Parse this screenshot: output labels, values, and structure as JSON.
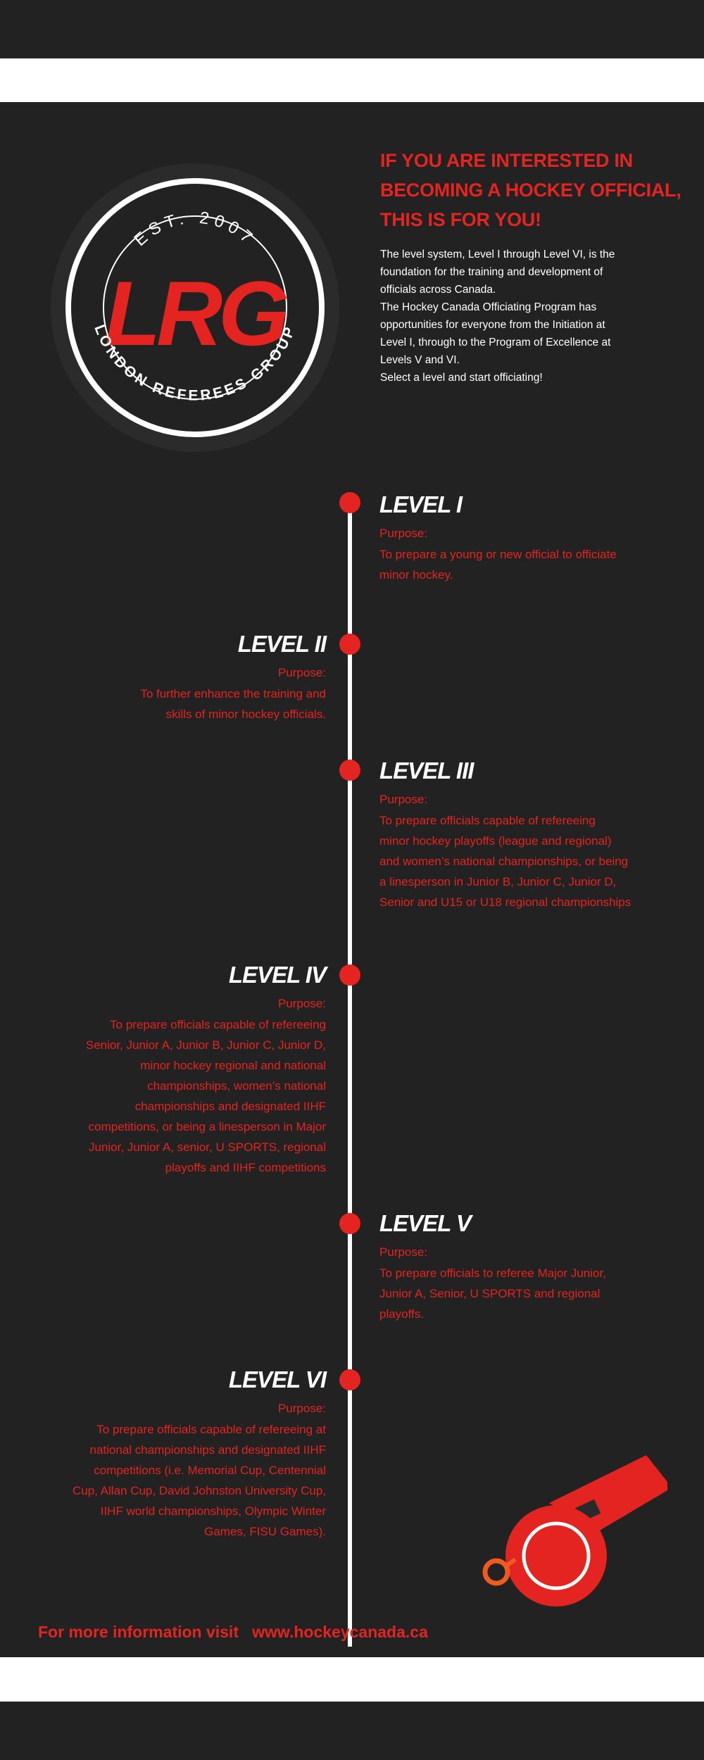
{
  "logo": {
    "est": "EST. 2007",
    "letters": "LRG",
    "ring_text": "LONDON REFEREES GROUP"
  },
  "intro": {
    "heading_lines": [
      "IF YOU ARE INTERESTED IN",
      "BECOMING A HOCKEY OFFICIAL,",
      "THIS IS FOR YOU!"
    ],
    "paragraph_lines": [
      "The level system, Level I through Level VI, is the",
      "foundation for the training and development of",
      "officials across Canada.",
      "The Hockey Canada Officiating Program has",
      "opportunities for everyone from the Initiation at",
      "Level I, through to the Program of Excellence at",
      "Levels V and VI.",
      "Select a level and start officiating!"
    ]
  },
  "levels": [
    {
      "title": "LEVEL I",
      "purpose_label": "Purpose:",
      "lines": [
        "To prepare a young or new official to officiate",
        "minor hockey."
      ]
    },
    {
      "title": "LEVEL II",
      "purpose_label": "Purpose:",
      "lines": [
        "To further enhance the training and",
        "skills of minor hockey officials."
      ]
    },
    {
      "title": "LEVEL III",
      "purpose_label": "Purpose:",
      "lines": [
        "To prepare officials capable of refereeing",
        "minor hockey playoffs (league and regional)",
        "and women’s national championships, or being",
        "a linesperson in Junior B, Junior C, Junior D,",
        "Senior and U15 or U18 regional championships"
      ]
    },
    {
      "title": "LEVEL IV",
      "purpose_label": "Purpose:",
      "lines": [
        "To prepare officials capable of refereeing",
        "Senior, Junior A, Junior B, Junior C, Junior D,",
        "minor hockey regional and national",
        "championships, women’s national",
        "championships and designated IIHF",
        "competitions, or being a linesperson in Major",
        "Junior, Junior A, senior, U SPORTS, regional",
        "playoffs and IIHF competitions"
      ]
    },
    {
      "title": "LEVEL V",
      "purpose_label": "Purpose:",
      "lines": [
        "To prepare officials to referee Major Junior,",
        "Junior A, Senior, U SPORTS and regional",
        "playoffs."
      ]
    },
    {
      "title": "LEVEL VI",
      "purpose_label": "Purpose:",
      "lines": [
        "To prepare officials capable of refereeing at",
        "national championships and designated IIHF",
        "competitions (i.e. Memorial Cup, Centennial",
        "Cup, Allan Cup, David Johnston University Cup,",
        "IIHF world championships, Olympic Winter",
        "Games, FISU Games)."
      ]
    }
  ],
  "footer": {
    "text": "For more information visit",
    "url": "www.hockeycanada.ca"
  },
  "colors": {
    "accent_red": "#e32420",
    "background": "#222222",
    "text_white": "#ffffff",
    "whistle_orange": "#f05a1e"
  }
}
